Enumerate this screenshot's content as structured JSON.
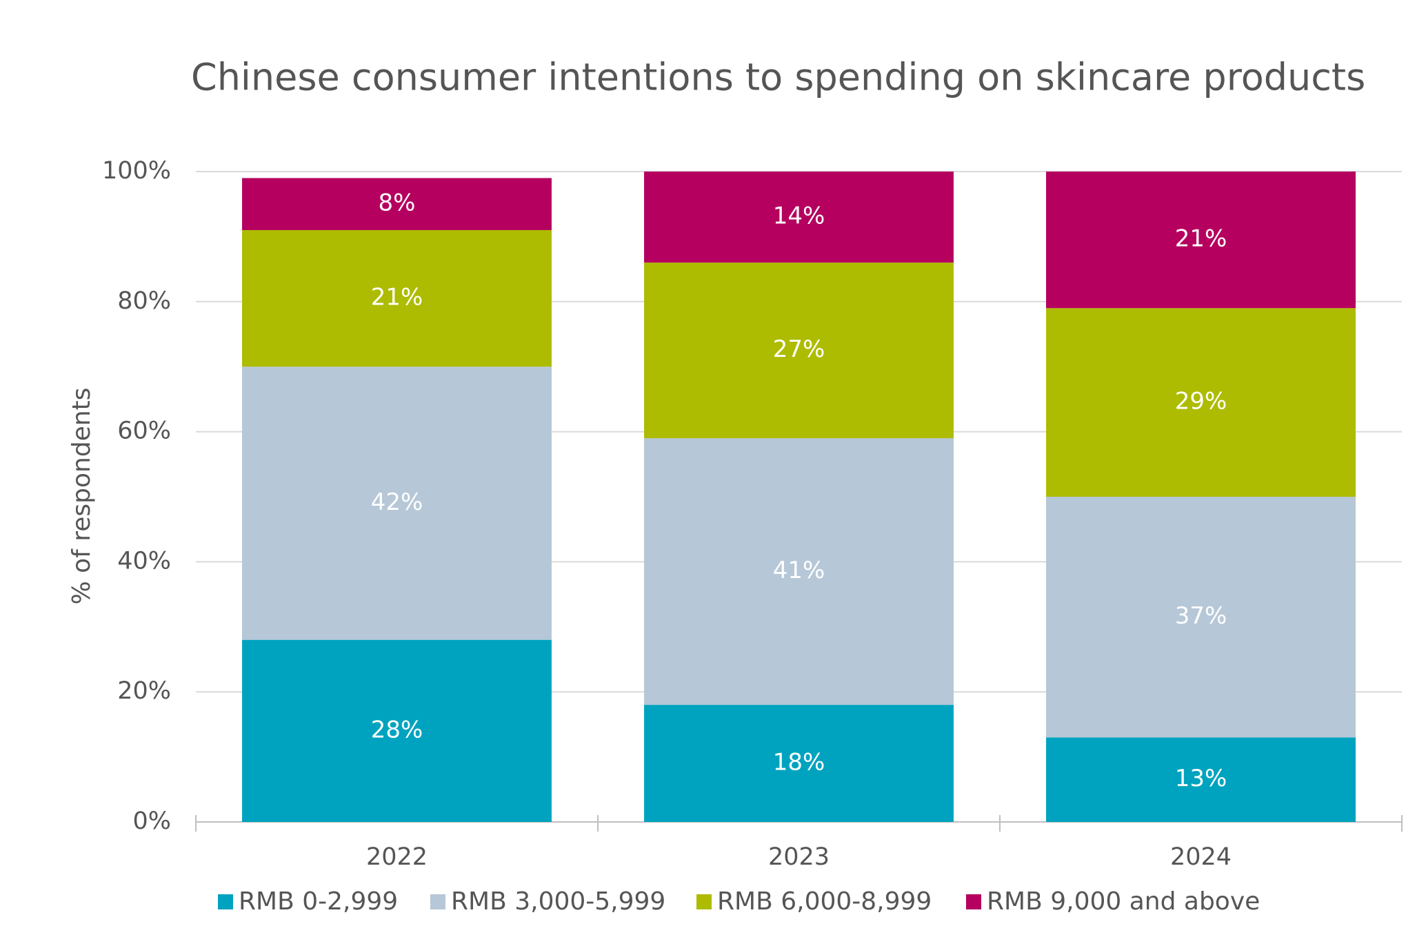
{
  "chart_data": {
    "type": "stacked_bar",
    "title": "Chinese consumer intentions to spending on skincare products",
    "y_label": "% of respondents",
    "categories": [
      "2022",
      "2023",
      "2024"
    ],
    "series": [
      {
        "name": "RMB 0-2,999",
        "color": "#00a3bf",
        "values": [
          28,
          18,
          13
        ],
        "value_labels": [
          "28%",
          "18%",
          "13%"
        ]
      },
      {
        "name": "RMB 3,000-5,999",
        "color": "#b6c7d7",
        "values": [
          42,
          41,
          37
        ],
        "value_labels": [
          "42%",
          "41%",
          "37%"
        ]
      },
      {
        "name": "RMB 6,000-8,999",
        "color": "#adbc00",
        "values": [
          21,
          27,
          29
        ],
        "value_labels": [
          "21%",
          "27%",
          "29%"
        ]
      },
      {
        "name": "RMB 9,000 and above",
        "color": "#b5005f",
        "values": [
          8,
          14,
          21
        ],
        "value_labels": [
          "8%",
          "14%",
          "21%"
        ]
      }
    ],
    "ylim": [
      0,
      100
    ],
    "yticks": [
      {
        "value": 0,
        "label": "0%"
      },
      {
        "value": 20,
        "label": "20%"
      },
      {
        "value": 40,
        "label": "40%"
      },
      {
        "value": 60,
        "label": "60%"
      },
      {
        "value": 80,
        "label": "80%"
      },
      {
        "value": 100,
        "label": "100%"
      }
    ],
    "grid": true,
    "legend": "bottom"
  }
}
